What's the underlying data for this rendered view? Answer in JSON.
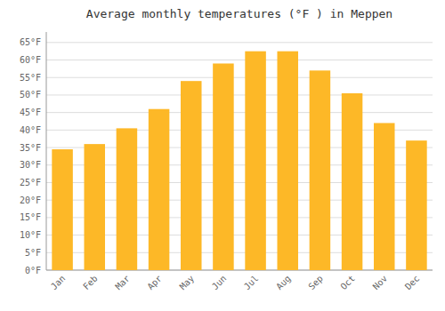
{
  "chart_data": {
    "type": "bar",
    "title": "Average monthly temperatures (°F ) in Meppen",
    "categories": [
      "Jan",
      "Feb",
      "Mar",
      "Apr",
      "May",
      "Jun",
      "Jul",
      "Aug",
      "Sep",
      "Oct",
      "Nov",
      "Dec"
    ],
    "values": [
      34.5,
      36.0,
      40.5,
      46.0,
      54.0,
      59.0,
      62.5,
      62.5,
      57.0,
      50.5,
      42.0,
      37.0
    ],
    "color": "#FDB827",
    "ylim": [
      0,
      68
    ],
    "yticks": [
      {
        "value": 0,
        "label": "0°F"
      },
      {
        "value": 5,
        "label": "5°F"
      },
      {
        "value": 10,
        "label": "10°F"
      },
      {
        "value": 15,
        "label": "15°F"
      },
      {
        "value": 20,
        "label": "20°F"
      },
      {
        "value": 25,
        "label": "25°F"
      },
      {
        "value": 30,
        "label": "30°F"
      },
      {
        "value": 35,
        "label": "35°F"
      },
      {
        "value": 40,
        "label": "40°F"
      },
      {
        "value": 45,
        "label": "45°F"
      },
      {
        "value": 50,
        "label": "50°F"
      },
      {
        "value": 55,
        "label": "55°F"
      },
      {
        "value": 60,
        "label": "60°F"
      },
      {
        "value": 65,
        "label": "65°F"
      }
    ],
    "grid": true
  }
}
